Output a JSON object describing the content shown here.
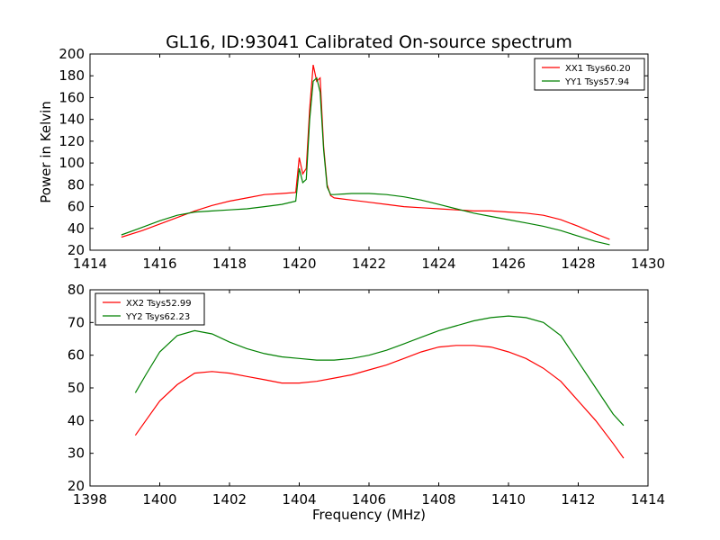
{
  "chart_data": [
    {
      "type": "line",
      "title": "GL16, ID:93041 Calibrated On-source spectrum",
      "xlabel": "",
      "ylabel": "Power in Kelvin",
      "xlim": [
        1414,
        1430
      ],
      "ylim": [
        20,
        200
      ],
      "xticks": [
        "1414",
        "1416",
        "1418",
        "1420",
        "1422",
        "1424",
        "1426",
        "1428",
        "1430"
      ],
      "yticks": [
        "20",
        "40",
        "60",
        "80",
        "100",
        "120",
        "140",
        "160",
        "180",
        "200"
      ],
      "legend_position": "top-right",
      "grid": false,
      "series": [
        {
          "name": "XX1 Tsys60.20",
          "color": "#ff0000",
          "x": [
            1414.9,
            1415.5,
            1416.0,
            1416.5,
            1417.0,
            1417.5,
            1418.0,
            1418.5,
            1419.0,
            1419.5,
            1419.9,
            1420.0,
            1420.1,
            1420.2,
            1420.3,
            1420.4,
            1420.5,
            1420.6,
            1420.7,
            1420.8,
            1420.9,
            1421.0,
            1421.5,
            1422.0,
            1422.5,
            1423.0,
            1423.5,
            1424.0,
            1424.5,
            1425.0,
            1425.5,
            1426.0,
            1426.5,
            1427.0,
            1427.5,
            1428.0,
            1428.5,
            1428.9
          ],
          "values": [
            32,
            38,
            44,
            50,
            56,
            61,
            65,
            68,
            71,
            72,
            73,
            105,
            90,
            95,
            150,
            190,
            175,
            178,
            115,
            80,
            70,
            68,
            66,
            64,
            62,
            60,
            59,
            58,
            57,
            56,
            56,
            55,
            54,
            52,
            48,
            42,
            35,
            30
          ]
        },
        {
          "name": "YY1 Tsys57.94",
          "color": "#008000",
          "x": [
            1414.9,
            1415.5,
            1416.0,
            1416.5,
            1417.0,
            1417.5,
            1418.0,
            1418.5,
            1419.0,
            1419.5,
            1419.9,
            1420.0,
            1420.1,
            1420.2,
            1420.3,
            1420.4,
            1420.5,
            1420.6,
            1420.7,
            1420.8,
            1420.9,
            1421.0,
            1421.5,
            1422.0,
            1422.5,
            1423.0,
            1423.5,
            1424.0,
            1424.5,
            1425.0,
            1425.5,
            1426.0,
            1426.5,
            1427.0,
            1427.5,
            1428.0,
            1428.5,
            1428.9
          ],
          "values": [
            34,
            41,
            47,
            52,
            55,
            56,
            57,
            58,
            60,
            62,
            65,
            95,
            82,
            85,
            140,
            175,
            178,
            165,
            112,
            78,
            71,
            71,
            72,
            72,
            71,
            69,
            66,
            62,
            58,
            54,
            51,
            48,
            45,
            42,
            38,
            33,
            28,
            25
          ]
        }
      ]
    },
    {
      "type": "line",
      "title": "",
      "xlabel": "Frequency (MHz)",
      "ylabel": "",
      "xlim": [
        1398,
        1414
      ],
      "ylim": [
        20,
        80
      ],
      "xticks": [
        "1398",
        "1400",
        "1402",
        "1404",
        "1406",
        "1408",
        "1410",
        "1412",
        "1414"
      ],
      "yticks": [
        "20",
        "30",
        "40",
        "50",
        "60",
        "70",
        "80"
      ],
      "legend_position": "top-left",
      "grid": false,
      "series": [
        {
          "name": "XX2 Tsys52.99",
          "color": "#ff0000",
          "x": [
            1399.3,
            1399.6,
            1400.0,
            1400.5,
            1401.0,
            1401.5,
            1402.0,
            1402.5,
            1403.0,
            1403.5,
            1404.0,
            1404.5,
            1405.0,
            1405.5,
            1406.0,
            1406.5,
            1407.0,
            1407.5,
            1408.0,
            1408.5,
            1409.0,
            1409.5,
            1410.0,
            1410.5,
            1411.0,
            1411.5,
            1412.0,
            1412.5,
            1413.0,
            1413.3
          ],
          "values": [
            35.5,
            40,
            46,
            51,
            54.5,
            55,
            54.5,
            53.5,
            52.5,
            51.5,
            51.5,
            52,
            53,
            54,
            55.5,
            57,
            59,
            61,
            62.5,
            63,
            63,
            62.5,
            61,
            59,
            56,
            52,
            46,
            40,
            33,
            28.5
          ]
        },
        {
          "name": "YY2 Tsys62.23",
          "color": "#008000",
          "x": [
            1399.3,
            1399.6,
            1400.0,
            1400.5,
            1401.0,
            1401.5,
            1402.0,
            1402.5,
            1403.0,
            1403.5,
            1404.0,
            1404.5,
            1405.0,
            1405.5,
            1406.0,
            1406.5,
            1407.0,
            1407.5,
            1408.0,
            1408.5,
            1409.0,
            1409.5,
            1410.0,
            1410.5,
            1411.0,
            1411.5,
            1412.0,
            1412.5,
            1413.0,
            1413.3
          ],
          "values": [
            48.5,
            54,
            61,
            66,
            67.5,
            66.5,
            64,
            62,
            60.5,
            59.5,
            59,
            58.5,
            58.5,
            59,
            60,
            61.5,
            63.5,
            65.5,
            67.5,
            69,
            70.5,
            71.5,
            72,
            71.5,
            70,
            66,
            58,
            50,
            42,
            38.5
          ]
        }
      ]
    }
  ]
}
